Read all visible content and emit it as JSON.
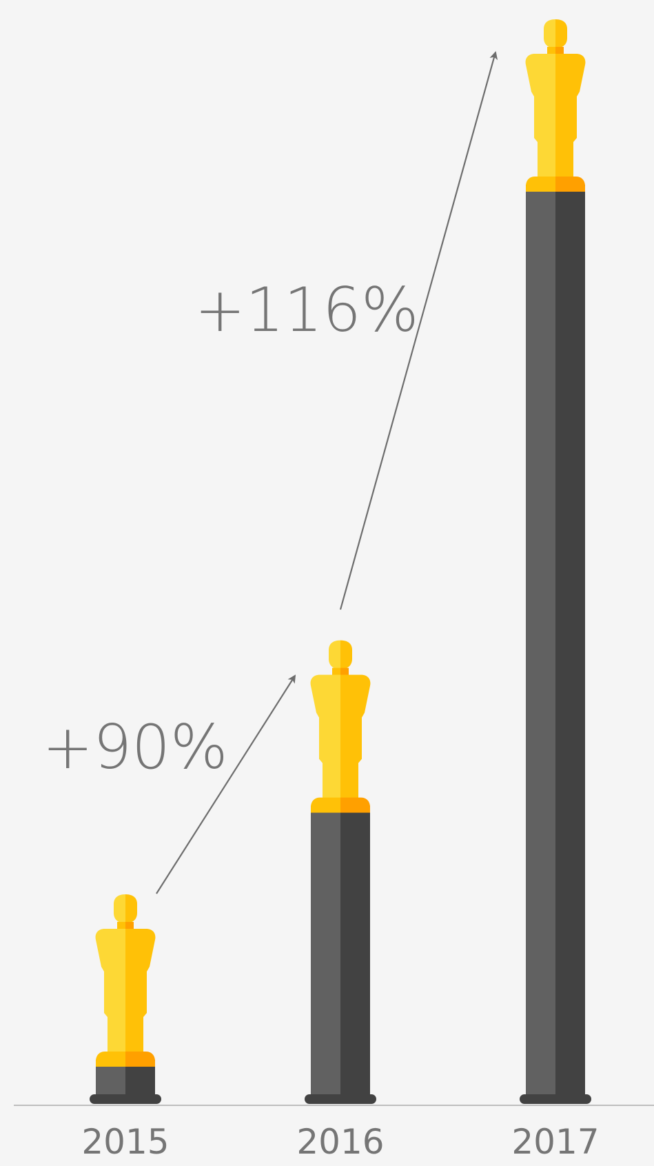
{
  "chart_data": {
    "type": "bar",
    "categories": [
      "2015",
      "2016",
      "2017"
    ],
    "values": [
      1.0,
      1.9,
      4.1
    ],
    "annotations": [
      {
        "from": "2015",
        "to": "2016",
        "label": "+90%"
      },
      {
        "from": "2016",
        "to": "2017",
        "label": "+116%"
      }
    ],
    "grid": false,
    "legend": "none"
  },
  "colors": {
    "background": "#f5f5f5",
    "pillar_light": "#616161",
    "pillar_dark": "#424242",
    "trophy_light": "#fdd835",
    "trophy_dark": "#ffc107",
    "trophy_base_light": "#ffc107",
    "trophy_base_dark": "#ffa000",
    "text": "#757575",
    "baseline": "#bdbdbd",
    "arrow": "#6d6d6d"
  },
  "icons": {
    "trophy": "oscar-statue-icon"
  }
}
